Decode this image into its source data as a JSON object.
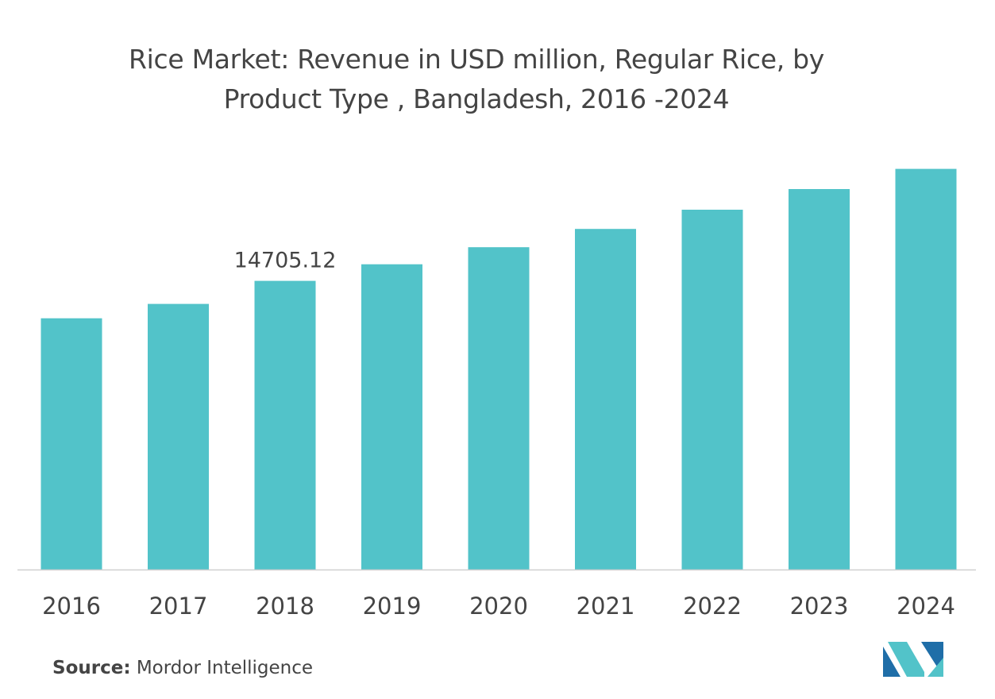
{
  "chart_data": {
    "type": "bar",
    "title_line1": "Rice Market: Revenue in USD million, Regular Rice, by",
    "title_line2": "Product Type , Bangladesh, 2016 -2024",
    "categories": [
      "2016",
      "2017",
      "2018",
      "2019",
      "2020",
      "2021",
      "2022",
      "2023",
      "2024"
    ],
    "values": [
      12800,
      13530,
      14705.12,
      15550,
      16420,
      17350,
      18330,
      19380,
      20410
    ],
    "data_labels": [
      {
        "index": 2,
        "text": "14705.12"
      }
    ],
    "ylim": [
      0,
      21000
    ],
    "grid": false,
    "legend": "none",
    "bar_color": "#52c3c9",
    "axis_color": "#cfcfcf"
  },
  "footer": {
    "source_label": "Source:",
    "source_text": "Mordor Intelligence"
  },
  "logo": {
    "icon": "mordor-intelligence-logo-icon",
    "colors": [
      "#1f6ea8",
      "#52c3c9"
    ]
  }
}
